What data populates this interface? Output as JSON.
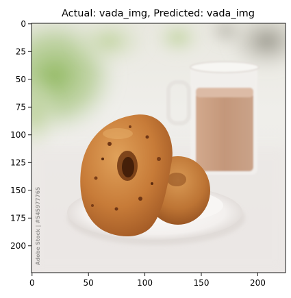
{
  "title": "Actual: vada_img, Predicted: vada_img",
  "axes": {
    "x_ticks": [
      "0",
      "50",
      "100",
      "150",
      "200"
    ],
    "y_ticks": [
      "0",
      "25",
      "50",
      "75",
      "100",
      "125",
      "150",
      "175",
      "200"
    ]
  },
  "image": {
    "watermark": "Adobe Stock | #545977765",
    "palette": {
      "background_light": "#ecebe6",
      "greenery": "#9cbf6c",
      "tea": "#c89a7c",
      "vada": "#c67a36",
      "vada_dark": "#8f4a1d",
      "plate": "#f4f1ee"
    }
  }
}
